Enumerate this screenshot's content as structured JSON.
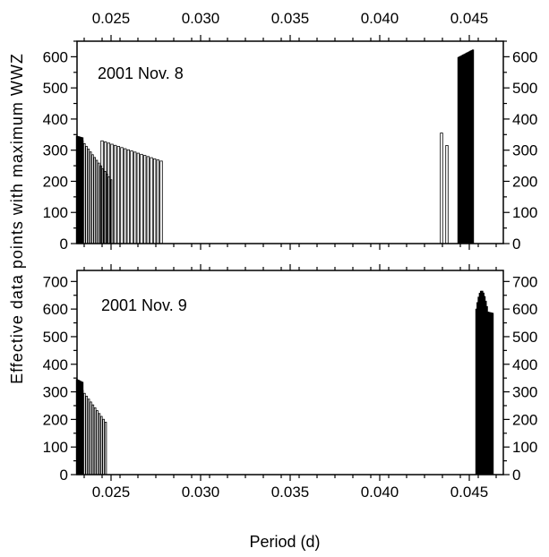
{
  "chart_data": {
    "type": "bar",
    "xlabel": "Period (d)",
    "ylabel": "Effective data points with maximum WWZ",
    "xlim": [
      0.0231,
      0.0469
    ],
    "x_ticks": [
      "0.025",
      "0.030",
      "0.035",
      "0.040",
      "0.045"
    ],
    "x_tick_values": [
      0.025,
      0.03,
      0.035,
      0.04,
      0.045
    ],
    "panels": [
      {
        "annotation": "2001 Nov. 8",
        "ylim": [
          0,
          650
        ],
        "y_ticks": [
          "0",
          "100",
          "200",
          "300",
          "400",
          "500",
          "600"
        ],
        "y_tick_values": [
          0,
          100,
          200,
          300,
          400,
          500,
          600
        ],
        "groups": [
          {
            "style": "filled",
            "x_start": 0.0231,
            "x_end": 0.0234,
            "y_start": 345,
            "y_end": 340
          },
          {
            "style": "hatched",
            "x_start": 0.0234,
            "x_end": 0.025,
            "y_start": 330,
            "y_end": 205
          },
          {
            "style": "outline",
            "x_start": 0.0245,
            "x_end": 0.0278,
            "y_start": 330,
            "y_end": 265
          },
          {
            "style": "outline",
            "x_start": 0.04345,
            "x_end": 0.04375,
            "y_start": 355,
            "y_end": 315
          },
          {
            "style": "filled",
            "x_start": 0.0444,
            "x_end": 0.0452,
            "y_start": 598,
            "y_end": 622
          }
        ]
      },
      {
        "annotation": "2001 Nov. 9",
        "ylim": [
          0,
          740
        ],
        "y_ticks": [
          "0",
          "100",
          "200",
          "300",
          "400",
          "500",
          "600",
          "700"
        ],
        "y_tick_values": [
          0,
          100,
          200,
          300,
          400,
          500,
          600,
          700
        ],
        "groups": [
          {
            "style": "filled",
            "x_start": 0.0231,
            "x_end": 0.0234,
            "y_start": 345,
            "y_end": 335
          },
          {
            "style": "hatched",
            "x_start": 0.0234,
            "x_end": 0.0247,
            "y_start": 305,
            "y_end": 190
          },
          {
            "style": "filled",
            "x_start": 0.0454,
            "x_end": 0.0463,
            "y_start": 600,
            "y_end": 585,
            "peak": 682
          }
        ]
      }
    ]
  }
}
